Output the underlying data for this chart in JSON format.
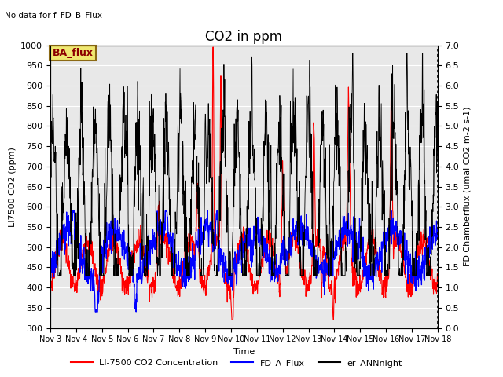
{
  "title": "CO2 in ppm",
  "no_data_text": "No data for f_FD_B_Flux",
  "ba_flux_label": "BA_flux",
  "left_ylabel": "LI7500 CO2 (ppm)",
  "right_ylabel": "FD Chamberflux (umal CO2 m-2 s-1)",
  "xlabel": "Time",
  "left_ylim": [
    300,
    1000
  ],
  "right_ylim": [
    0.0,
    7.0
  ],
  "left_yticks": [
    300,
    350,
    400,
    450,
    500,
    550,
    600,
    650,
    700,
    750,
    800,
    850,
    900,
    950,
    1000
  ],
  "right_yticks": [
    0.0,
    0.5,
    1.0,
    1.5,
    2.0,
    2.5,
    3.0,
    3.5,
    4.0,
    4.5,
    5.0,
    5.5,
    6.0,
    6.5,
    7.0
  ],
  "xtick_labels": [
    "Nov 3",
    "Nov 4",
    "Nov 5",
    "Nov 6",
    "Nov 7",
    "Nov 8",
    "Nov 9",
    "Nov 10",
    "Nov 11",
    "Nov 12",
    "Nov 13",
    "Nov 14",
    "Nov 15",
    "Nov 16",
    "Nov 17",
    "Nov 18"
  ],
  "line_colors": {
    "red_line": "#ff0000",
    "blue_line": "#0000ff",
    "black_line": "#000000"
  },
  "plot_bg_color": "#e8e8e8",
  "fig_bg_color": "#ffffff",
  "grid_color": "#ffffff",
  "title_fontsize": 12,
  "label_fontsize": 8,
  "tick_fontsize": 8,
  "n_points": 1500
}
